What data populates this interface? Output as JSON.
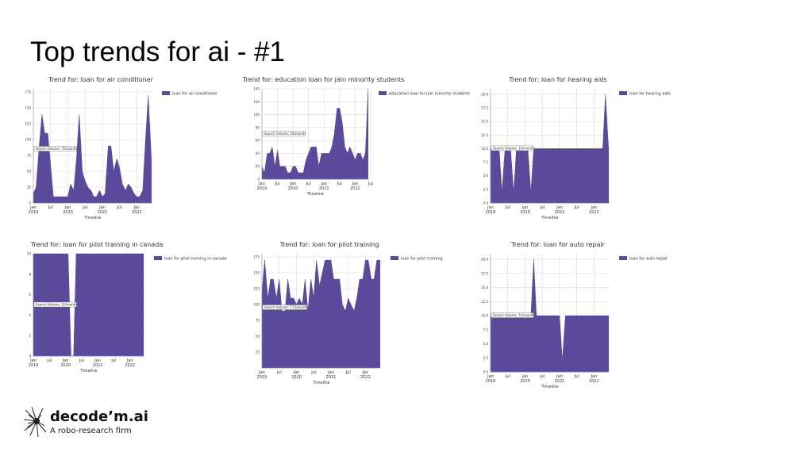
{
  "slide": {
    "title": "Top trends for ai - #1"
  },
  "brand": {
    "name": "decode’m.ai",
    "tagline": "A robo-research firm"
  },
  "colors": {
    "fill": "#5b4a9b",
    "grid": "#d9d9d9",
    "annotation_bg": "#ffffff"
  },
  "chart_data": [
    {
      "type": "area",
      "title": "Trend for: loan for air conditioner",
      "xlabel": "Timeline",
      "ylabel": "",
      "legend": "loan for air conditioner",
      "legend_position": "top-right",
      "annotation": "Search Volume: 70/month",
      "annotation_y": 85,
      "x_ticks": [
        "Jan\n2019",
        "Jul",
        "Jan\n2020",
        "Jul",
        "Jan\n2021",
        "Jul",
        "Jan\n2022",
        "Jul"
      ],
      "y_ticks": [
        "0",
        "25",
        "50",
        "75",
        "100",
        "125",
        "150",
        "175"
      ],
      "ylim": [
        0,
        180
      ],
      "grid": true,
      "x": [
        2019.0,
        2019.08,
        2019.17,
        2019.25,
        2019.33,
        2019.42,
        2019.5,
        2019.58,
        2019.67,
        2019.75,
        2019.83,
        2019.92,
        2020.0,
        2020.08,
        2020.17,
        2020.25,
        2020.33,
        2020.42,
        2020.5,
        2020.58,
        2020.67,
        2020.75,
        2020.83,
        2020.92,
        2021.0,
        2021.08,
        2021.17,
        2021.25,
        2021.33,
        2021.42,
        2021.5,
        2021.58,
        2021.67,
        2021.75,
        2021.83,
        2021.92,
        2022.0,
        2022.08,
        2022.17,
        2022.25,
        2022.33,
        2022.42
      ],
      "values": [
        15,
        25,
        90,
        140,
        110,
        110,
        60,
        10,
        10,
        10,
        10,
        10,
        10,
        30,
        20,
        70,
        140,
        50,
        35,
        25,
        20,
        10,
        10,
        20,
        10,
        15,
        90,
        90,
        50,
        70,
        55,
        30,
        20,
        30,
        25,
        15,
        10,
        10,
        20,
        100,
        170,
        70
      ]
    },
    {
      "type": "area",
      "title": "Trend for: education loan for jain minority students",
      "xlabel": "Timeline",
      "ylabel": "",
      "legend": "education loan for jain minority students",
      "legend_position": "top-right",
      "annotation": "Search Volume: 18/month",
      "annotation_y": 70,
      "x_ticks": [
        "Jan\n2019",
        "Jul",
        "Jan\n2020",
        "Jul",
        "Jan\n2021",
        "Jul",
        "Jan\n2022",
        "Jul"
      ],
      "y_ticks": [
        "0",
        "20",
        "40",
        "60",
        "80",
        "100",
        "120",
        "140"
      ],
      "ylim": [
        0,
        140
      ],
      "grid": true,
      "x": [
        2019.0,
        2019.08,
        2019.17,
        2019.25,
        2019.33,
        2019.42,
        2019.5,
        2019.58,
        2019.67,
        2019.75,
        2019.83,
        2019.92,
        2020.0,
        2020.08,
        2020.17,
        2020.25,
        2020.33,
        2020.42,
        2020.5,
        2020.58,
        2020.67,
        2020.75,
        2020.83,
        2020.92,
        2021.0,
        2021.08,
        2021.17,
        2021.25,
        2021.33,
        2021.42,
        2021.5,
        2021.58,
        2021.67,
        2021.75,
        2021.83,
        2021.92,
        2022.0,
        2022.08,
        2022.17,
        2022.25,
        2022.33,
        2022.42
      ],
      "values": [
        20,
        10,
        40,
        40,
        50,
        20,
        45,
        20,
        20,
        20,
        10,
        10,
        20,
        20,
        10,
        10,
        10,
        30,
        40,
        50,
        50,
        50,
        20,
        40,
        40,
        40,
        40,
        50,
        70,
        110,
        110,
        90,
        50,
        40,
        50,
        40,
        30,
        40,
        40,
        30,
        40,
        140
      ]
    },
    {
      "type": "area",
      "title": "Trend for: loan for hearing aids",
      "xlabel": "Timeline",
      "ylabel": "",
      "legend": "loan for hearing aids",
      "legend_position": "top-right",
      "annotation": "Search Volume: 10/month",
      "annotation_y": 10,
      "x_ticks": [
        "Jan\n2019",
        "Jul",
        "Jan\n2020",
        "Jul",
        "Jan\n2021",
        "Jul",
        "Jan\n2022",
        "Jul"
      ],
      "y_ticks": [
        "0.0",
        "2.5",
        "5.0",
        "7.5",
        "10.0",
        "12.5",
        "15.0",
        "17.5",
        "20.0"
      ],
      "ylim": [
        0,
        21
      ],
      "grid": true,
      "x": [
        2019.0,
        2019.08,
        2019.17,
        2019.25,
        2019.33,
        2019.42,
        2019.5,
        2019.58,
        2019.67,
        2019.75,
        2019.83,
        2019.92,
        2020.0,
        2020.08,
        2020.17,
        2020.25,
        2020.33,
        2020.42,
        2020.5,
        2020.58,
        2020.67,
        2020.75,
        2020.83,
        2020.92,
        2021.0,
        2021.08,
        2021.17,
        2021.25,
        2021.33,
        2021.42,
        2021.5,
        2021.58,
        2021.67,
        2021.75,
        2021.83,
        2021.92,
        2022.0,
        2022.08,
        2022.17,
        2022.25,
        2022.33,
        2022.42
      ],
      "values": [
        10,
        10,
        10,
        10,
        2,
        10,
        10,
        10,
        2,
        10,
        10,
        10,
        10,
        10,
        2,
        10,
        10,
        10,
        10,
        10,
        10,
        10,
        10,
        10,
        10,
        10,
        10,
        10,
        10,
        10,
        10,
        10,
        10,
        10,
        10,
        10,
        10,
        10,
        10,
        10,
        20,
        10
      ]
    },
    {
      "type": "area",
      "title": "Trend for: loan for pilot training in canada",
      "xlabel": "Timeline",
      "ylabel": "",
      "legend": "loan for pilot training in canada",
      "legend_position": "top-right",
      "annotation": "Search Volume: 10/month",
      "annotation_y": 5,
      "x_ticks": [
        "Jan\n2019",
        "Jul",
        "Jan\n2020",
        "Jul",
        "Jan\n2021",
        "Jul",
        "Jan\n2022",
        "Jul"
      ],
      "y_ticks": [
        "0",
        "2",
        "4",
        "6",
        "8",
        "10"
      ],
      "ylim": [
        0,
        10
      ],
      "grid": true,
      "x": [
        2019.0,
        2019.08,
        2019.17,
        2019.25,
        2019.33,
        2019.42,
        2019.5,
        2019.58,
        2019.67,
        2019.75,
        2019.83,
        2019.92,
        2020.0,
        2020.08,
        2020.17,
        2020.25,
        2020.33,
        2020.42,
        2020.5,
        2020.58,
        2020.67,
        2020.75,
        2020.83,
        2020.92,
        2021.0,
        2021.08,
        2021.17,
        2021.25,
        2021.33,
        2021.42,
        2021.5,
        2021.58,
        2021.67,
        2021.75,
        2021.83,
        2021.92,
        2022.0,
        2022.08,
        2022.17,
        2022.25,
        2022.33,
        2022.42
      ],
      "values": [
        10,
        10,
        10,
        10,
        10,
        10,
        10,
        10,
        10,
        10,
        10,
        10,
        10,
        10,
        0,
        0,
        10,
        10,
        10,
        10,
        10,
        10,
        10,
        10,
        10,
        10,
        10,
        10,
        10,
        10,
        10,
        10,
        10,
        10,
        10,
        10,
        10,
        10,
        10,
        10,
        10,
        10
      ]
    },
    {
      "type": "area",
      "title": "Trend for: loan for pilot training",
      "xlabel": "Timeline",
      "ylabel": "",
      "legend": "loan for pilot training",
      "legend_position": "top-right",
      "annotation": "Search Volume: 170/month",
      "annotation_y": 95,
      "x_ticks": [
        "Jan\n2019",
        "Jul",
        "Jan\n2020",
        "Jul",
        "Jan\n2021",
        "Jul",
        "Jan\n2022",
        "Jul"
      ],
      "y_ticks": [
        "25",
        "50",
        "75",
        "100",
        "125",
        "150",
        "175"
      ],
      "ylim": [
        0,
        180
      ],
      "grid": true,
      "x": [
        2019.0,
        2019.08,
        2019.17,
        2019.25,
        2019.33,
        2019.42,
        2019.5,
        2019.58,
        2019.67,
        2019.75,
        2019.83,
        2019.92,
        2020.0,
        2020.08,
        2020.17,
        2020.25,
        2020.33,
        2020.42,
        2020.5,
        2020.58,
        2020.67,
        2020.75,
        2020.83,
        2020.92,
        2021.0,
        2021.08,
        2021.17,
        2021.25,
        2021.33,
        2021.42,
        2021.5,
        2021.58,
        2021.67,
        2021.75,
        2021.83,
        2021.92,
        2022.0,
        2022.08,
        2022.17,
        2022.25,
        2022.33,
        2022.42
      ],
      "values": [
        120,
        170,
        110,
        140,
        140,
        110,
        140,
        90,
        90,
        140,
        110,
        110,
        100,
        110,
        100,
        140,
        90,
        140,
        110,
        170,
        130,
        150,
        170,
        170,
        170,
        140,
        140,
        140,
        100,
        90,
        110,
        100,
        90,
        110,
        140,
        140,
        170,
        170,
        140,
        140,
        170,
        170
      ]
    },
    {
      "type": "area",
      "title": "Trend for: loan for auto repair",
      "xlabel": "Timeline",
      "ylabel": "",
      "legend": "loan for auto repair",
      "legend_position": "top-right",
      "annotation": "Search Volume: 10/month",
      "annotation_y": 10,
      "x_ticks": [
        "Jan\n2019",
        "Jul",
        "Jan\n2020",
        "Jul",
        "Jan\n2021",
        "Jul",
        "Jan\n2022",
        "Jul"
      ],
      "y_ticks": [
        "0.0",
        "2.5",
        "5.0",
        "7.5",
        "10.0",
        "12.5",
        "15.0",
        "17.5",
        "20.0"
      ],
      "ylim": [
        0,
        21
      ],
      "grid": true,
      "x": [
        2019.0,
        2019.08,
        2019.17,
        2019.25,
        2019.33,
        2019.42,
        2019.5,
        2019.58,
        2019.67,
        2019.75,
        2019.83,
        2019.92,
        2020.0,
        2020.08,
        2020.17,
        2020.25,
        2020.33,
        2020.42,
        2020.5,
        2020.58,
        2020.67,
        2020.75,
        2020.83,
        2020.92,
        2021.0,
        2021.08,
        2021.17,
        2021.25,
        2021.33,
        2021.42,
        2021.5,
        2021.58,
        2021.67,
        2021.75,
        2021.83,
        2021.92,
        2022.0,
        2022.08,
        2022.17,
        2022.25,
        2022.33,
        2022.42
      ],
      "values": [
        10,
        10,
        10,
        10,
        10,
        10,
        10,
        10,
        10,
        10,
        10,
        10,
        10,
        10,
        10,
        20,
        10,
        10,
        10,
        10,
        10,
        10,
        10,
        10,
        10,
        2,
        10,
        10,
        10,
        10,
        10,
        10,
        10,
        10,
        10,
        10,
        10,
        10,
        10,
        10,
        10,
        10
      ]
    }
  ]
}
